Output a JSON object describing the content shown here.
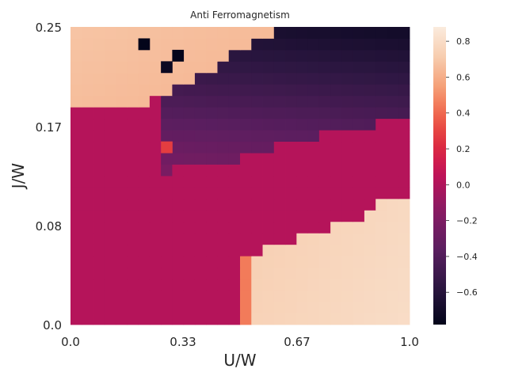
{
  "chart_data": {
    "type": "heatmap",
    "title": "Anti Ferromagnetism",
    "xlabel": "U/W",
    "ylabel": "J/W",
    "xlim": [
      0.0,
      1.0
    ],
    "ylim": [
      0.0,
      0.25
    ],
    "x_tick_labels": [
      "0.0",
      "0.33",
      "0.67",
      "1.0"
    ],
    "y_tick_labels": [
      "0.0",
      "0.08",
      "0.17",
      "0.25"
    ],
    "colorbar": {
      "range": [
        -0.78,
        0.88
      ],
      "tick_values": [
        0.8,
        0.6,
        0.4,
        0.2,
        0.0,
        -0.2,
        -0.4,
        -0.6
      ],
      "tick_labels": [
        "0.8",
        "0.6",
        "0.4",
        "0.2",
        "0.0",
        "−0.2",
        "−0.4",
        "−0.6"
      ]
    },
    "grid": false,
    "colormap": "rocket",
    "nx": 30,
    "ny": 26,
    "regions": [
      {
        "name": "top-left-positive",
        "value_range": [
          0.62,
          0.78
        ]
      },
      {
        "name": "upper-middle-negative-band",
        "value_range": [
          -0.68,
          -0.3
        ]
      },
      {
        "name": "background-near-zero",
        "value": 0.02
      },
      {
        "name": "lower-right-positive",
        "value_range": [
          0.72,
          0.86
        ]
      },
      {
        "name": "positive-boundary-column",
        "value_range": [
          0.4,
          0.5
        ]
      }
    ],
    "outliers": [
      {
        "x": 0.217,
        "y": 0.24,
        "value": -0.78
      },
      {
        "x": 0.317,
        "y": 0.23,
        "value": -0.78
      },
      {
        "x": 0.283,
        "y": 0.22,
        "value": -0.74
      },
      {
        "x": 0.283,
        "y": 0.15,
        "value": 0.28
      }
    ]
  }
}
